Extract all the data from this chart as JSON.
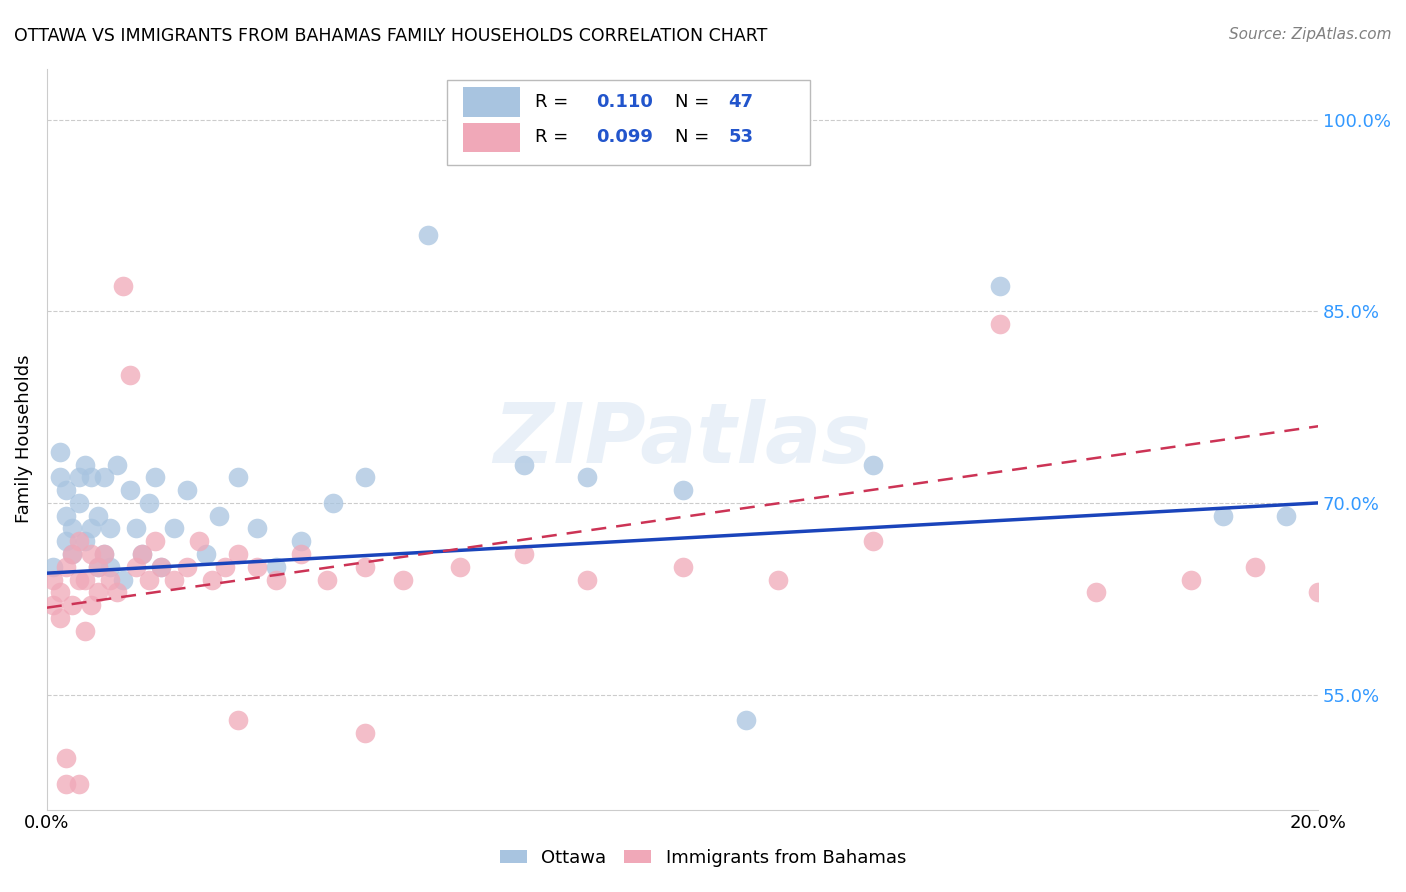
{
  "title": "OTTAWA VS IMMIGRANTS FROM BAHAMAS FAMILY HOUSEHOLDS CORRELATION CHART",
  "source": "Source: ZipAtlas.com",
  "ylabel": "Family Households",
  "xlim": [
    0.0,
    0.2
  ],
  "ylim": [
    0.46,
    1.04
  ],
  "xticks": [
    0.0,
    0.05,
    0.1,
    0.15,
    0.2
  ],
  "xticklabels": [
    "0.0%",
    "",
    "",
    "",
    "20.0%"
  ],
  "yticks_right": [
    0.55,
    0.7,
    0.85,
    1.0
  ],
  "ytick_labels_right": [
    "55.0%",
    "70.0%",
    "85.0%",
    "100.0%"
  ],
  "watermark": "ZIPatlas",
  "series1_label": "Ottawa",
  "series2_label": "Immigrants from Bahamas",
  "color_ottawa": "#a8c4e0",
  "color_immigrants": "#f0a8b8",
  "color_trend_ottawa": "#1a44bb",
  "color_trend_immigrants": "#cc3355",
  "ottawa_x": [
    0.001,
    0.002,
    0.002,
    0.003,
    0.003,
    0.003,
    0.004,
    0.004,
    0.005,
    0.005,
    0.006,
    0.006,
    0.007,
    0.007,
    0.008,
    0.008,
    0.009,
    0.009,
    0.01,
    0.01,
    0.011,
    0.012,
    0.013,
    0.014,
    0.015,
    0.016,
    0.017,
    0.018,
    0.02,
    0.022,
    0.025,
    0.027,
    0.03,
    0.033,
    0.036,
    0.04,
    0.045,
    0.05,
    0.06,
    0.075,
    0.085,
    0.1,
    0.11,
    0.13,
    0.15,
    0.185,
    0.195
  ],
  "ottawa_y": [
    0.65,
    0.72,
    0.74,
    0.67,
    0.69,
    0.71,
    0.66,
    0.68,
    0.72,
    0.7,
    0.73,
    0.67,
    0.72,
    0.68,
    0.65,
    0.69,
    0.66,
    0.72,
    0.65,
    0.68,
    0.73,
    0.64,
    0.71,
    0.68,
    0.66,
    0.7,
    0.72,
    0.65,
    0.68,
    0.71,
    0.66,
    0.69,
    0.72,
    0.68,
    0.65,
    0.67,
    0.7,
    0.72,
    0.91,
    0.73,
    0.72,
    0.71,
    0.53,
    0.73,
    0.87,
    0.69,
    0.69
  ],
  "immigrants_x": [
    0.001,
    0.001,
    0.002,
    0.002,
    0.003,
    0.003,
    0.004,
    0.004,
    0.005,
    0.005,
    0.006,
    0.006,
    0.007,
    0.007,
    0.008,
    0.008,
    0.009,
    0.01,
    0.011,
    0.012,
    0.013,
    0.014,
    0.015,
    0.016,
    0.017,
    0.018,
    0.02,
    0.022,
    0.024,
    0.026,
    0.028,
    0.03,
    0.033,
    0.036,
    0.04,
    0.044,
    0.05,
    0.056,
    0.065,
    0.075,
    0.085,
    0.1,
    0.115,
    0.13,
    0.15,
    0.165,
    0.18,
    0.19,
    0.2,
    0.003,
    0.005,
    0.03,
    0.05
  ],
  "immigrants_y": [
    0.64,
    0.62,
    0.63,
    0.61,
    0.65,
    0.48,
    0.62,
    0.66,
    0.64,
    0.67,
    0.6,
    0.64,
    0.66,
    0.62,
    0.65,
    0.63,
    0.66,
    0.64,
    0.63,
    0.87,
    0.8,
    0.65,
    0.66,
    0.64,
    0.67,
    0.65,
    0.64,
    0.65,
    0.67,
    0.64,
    0.65,
    0.66,
    0.65,
    0.64,
    0.66,
    0.64,
    0.65,
    0.64,
    0.65,
    0.66,
    0.64,
    0.65,
    0.64,
    0.67,
    0.84,
    0.63,
    0.64,
    0.65,
    0.63,
    0.5,
    0.48,
    0.53,
    0.52
  ]
}
